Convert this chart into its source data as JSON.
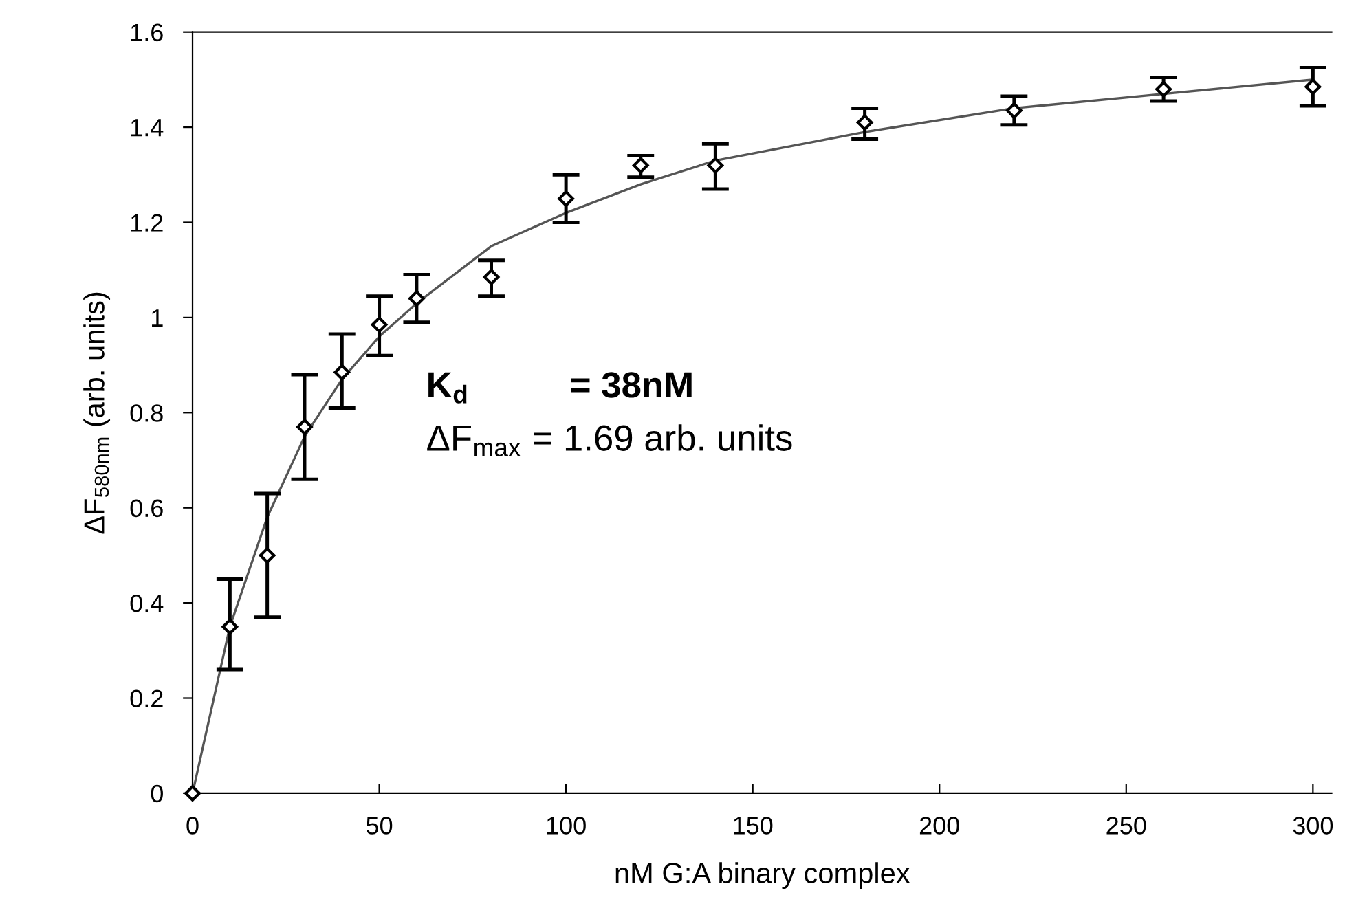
{
  "chart_data": {
    "type": "scatter",
    "xlabel": "nM G:A binary complex",
    "ylabel": "ΔF$_{580nm}$ (arb. units)",
    "xlim": [
      0,
      305
    ],
    "ylim": [
      0,
      1.6
    ],
    "xticks": [
      0,
      50,
      100,
      150,
      200,
      250,
      300
    ],
    "yticks": [
      0,
      0.2,
      0.4,
      0.6,
      0.8,
      1,
      1.2,
      1.4,
      1.6
    ],
    "grid": false,
    "legend": false,
    "series": [
      {
        "type": "line",
        "color": "#555555",
        "marker": "none",
        "line_style": "solid",
        "x": [
          0,
          10,
          20,
          30,
          40,
          50,
          60,
          80,
          100,
          120,
          140,
          180,
          220,
          260,
          300
        ],
        "values": [
          0,
          0.35,
          0.58,
          0.75,
          0.87,
          0.96,
          1.03,
          1.15,
          1.22,
          1.28,
          1.33,
          1.39,
          1.44,
          1.47,
          1.5
        ]
      },
      {
        "color": "#000000",
        "marker": "diamond",
        "x": [
          0,
          10,
          20,
          30,
          40,
          50,
          60,
          80,
          100,
          120,
          140,
          180,
          220,
          260,
          300
        ],
        "values": [
          0,
          0.35,
          0.5,
          0.77,
          0.885,
          0.985,
          1.04,
          1.085,
          1.25,
          1.32,
          1.32,
          1.41,
          1.435,
          1.48,
          1.485
        ],
        "errors": [
          null,
          [
            0.26,
            0.45
          ],
          [
            0.37,
            0.63
          ],
          [
            0.66,
            0.88
          ],
          [
            0.81,
            0.965
          ],
          [
            0.92,
            1.045
          ],
          [
            0.99,
            1.09
          ],
          [
            1.045,
            1.12
          ],
          [
            1.2,
            1.3
          ],
          [
            1.295,
            1.34
          ],
          [
            1.27,
            1.365
          ],
          [
            1.375,
            1.44
          ],
          [
            1.405,
            1.465
          ],
          [
            1.455,
            1.505
          ],
          [
            1.445,
            1.525
          ]
        ]
      }
    ],
    "annotations": [
      "K$_{d}$          = 38nM",
      "ΔF$_{max}$ = 1.69 arb. units"
    ]
  }
}
